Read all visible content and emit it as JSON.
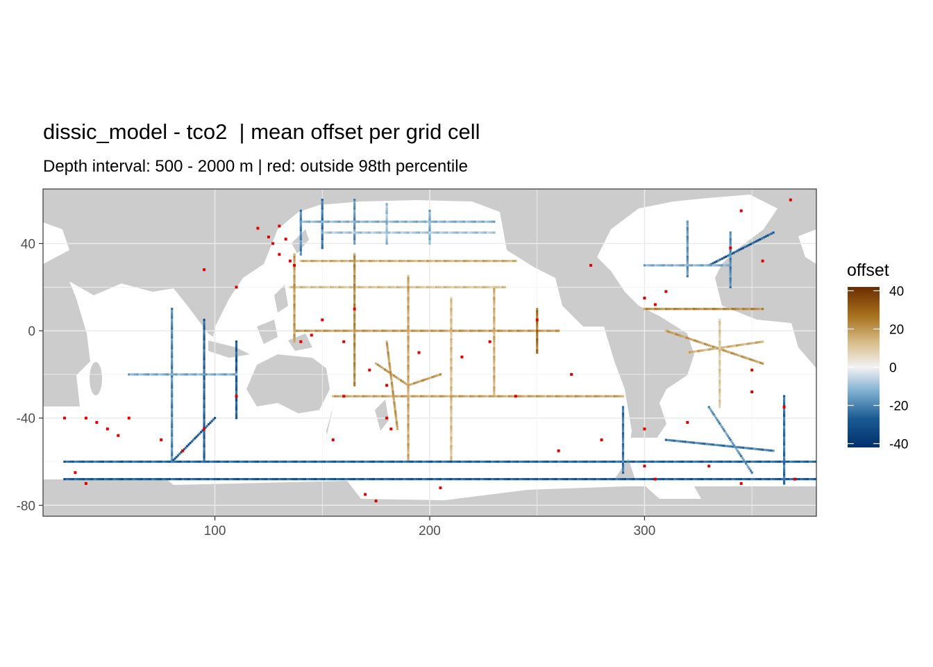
{
  "title": "dissic_model - tco2  | mean offset per grid cell",
  "subtitle": "Depth interval: 500 - 2000 m | red: outside 98th percentile",
  "colors": {
    "land": "#cccccc",
    "ocean": "#ffffff",
    "grid": "#ebebeb",
    "outlier": "#e00000",
    "scale_low": "#00306a",
    "scale_mid": "#f2f2f2",
    "scale_high": "#6b2c00"
  },
  "chart_data": {
    "type": "heatmap",
    "title": "dissic_model - tco2  | mean offset per grid cell",
    "subtitle": "Depth interval: 500 - 2000 m | red: outside 98th percentile",
    "xlabel": "",
    "ylabel": "",
    "xlim": [
      20,
      380
    ],
    "ylim": [
      -85,
      65
    ],
    "x_ticks": [
      100,
      200,
      300
    ],
    "y_ticks": [
      40,
      0,
      -40,
      -80
    ],
    "x_tick_labels": [
      "100",
      "200",
      "300"
    ],
    "y_tick_labels": [
      "40",
      "0",
      "-40",
      "-80"
    ],
    "grid": true,
    "legend": {
      "title": "offset",
      "position": "right",
      "range": [
        -42,
        42
      ],
      "breaks": [
        40,
        20,
        0,
        -20,
        -40
      ],
      "labels": [
        "40",
        "20",
        "0",
        "-20",
        "-40"
      ]
    },
    "tracks": [
      {
        "points": [
          [
            140,
            32
          ],
          [
            200,
            32
          ],
          [
            240,
            32
          ]
        ],
        "value": 18
      },
      {
        "points": [
          [
            135,
            20
          ],
          [
            200,
            20
          ],
          [
            235,
            20
          ]
        ],
        "value": 14
      },
      {
        "points": [
          [
            137,
            0
          ],
          [
            260,
            0
          ]
        ],
        "value": 22
      },
      {
        "points": [
          [
            137,
            35
          ],
          [
            137,
            -5
          ]
        ],
        "value": 22
      },
      {
        "points": [
          [
            165,
            35
          ],
          [
            165,
            -25
          ]
        ],
        "value": 25
      },
      {
        "points": [
          [
            190,
            25
          ],
          [
            190,
            -60
          ]
        ],
        "value": 20
      },
      {
        "points": [
          [
            210,
            15
          ],
          [
            210,
            -60
          ]
        ],
        "value": 15
      },
      {
        "points": [
          [
            230,
            20
          ],
          [
            230,
            -30
          ]
        ],
        "value": 18
      },
      {
        "points": [
          [
            250,
            10
          ],
          [
            250,
            -10
          ]
        ],
        "value": 30
      },
      {
        "points": [
          [
            155,
            -30
          ],
          [
            290,
            -30
          ]
        ],
        "value": 20
      },
      {
        "points": [
          [
            175,
            -15
          ],
          [
            190,
            -25
          ],
          [
            205,
            -20
          ]
        ],
        "value": 22
      },
      {
        "points": [
          [
            180,
            -5
          ],
          [
            185,
            -45
          ]
        ],
        "value": 22
      },
      {
        "points": [
          [
            300,
            10
          ],
          [
            355,
            10
          ]
        ],
        "value": 25
      },
      {
        "points": [
          [
            310,
            0
          ],
          [
            355,
            -15
          ]
        ],
        "value": 22
      },
      {
        "points": [
          [
            320,
            -10
          ],
          [
            355,
            -5
          ]
        ],
        "value": 18
      },
      {
        "points": [
          [
            335,
            5
          ],
          [
            335,
            -35
          ]
        ],
        "value": 12
      },
      {
        "points": [
          [
            140,
            55
          ],
          [
            140,
            35
          ]
        ],
        "value": -22
      },
      {
        "points": [
          [
            150,
            60
          ],
          [
            150,
            38
          ]
        ],
        "value": -25
      },
      {
        "points": [
          [
            165,
            60
          ],
          [
            165,
            40
          ]
        ],
        "value": -20
      },
      {
        "points": [
          [
            180,
            58
          ],
          [
            180,
            40
          ]
        ],
        "value": -12
      },
      {
        "points": [
          [
            200,
            55
          ],
          [
            200,
            40
          ]
        ],
        "value": -15
      },
      {
        "points": [
          [
            140,
            50
          ],
          [
            230,
            50
          ]
        ],
        "value": -14
      },
      {
        "points": [
          [
            150,
            45
          ],
          [
            230,
            45
          ]
        ],
        "value": -10
      },
      {
        "points": [
          [
            80,
            10
          ],
          [
            80,
            -60
          ]
        ],
        "value": -22
      },
      {
        "points": [
          [
            95,
            5
          ],
          [
            95,
            -60
          ]
        ],
        "value": -28
      },
      {
        "points": [
          [
            110,
            -5
          ],
          [
            110,
            -40
          ]
        ],
        "value": -30
      },
      {
        "points": [
          [
            60,
            -20
          ],
          [
            110,
            -20
          ]
        ],
        "value": -15
      },
      {
        "points": [
          [
            100,
            -40
          ],
          [
            80,
            -60
          ]
        ],
        "value": -30
      },
      {
        "points": [
          [
            30,
            -60
          ],
          [
            380,
            -60
          ]
        ],
        "value": -28
      },
      {
        "points": [
          [
            30,
            -68
          ],
          [
            380,
            -68
          ]
        ],
        "value": -30
      },
      {
        "points": [
          [
            290,
            -65
          ],
          [
            290,
            -35
          ]
        ],
        "value": -25
      },
      {
        "points": [
          [
            330,
            30
          ],
          [
            360,
            45
          ]
        ],
        "value": -30
      },
      {
        "points": [
          [
            320,
            25
          ],
          [
            320,
            50
          ]
        ],
        "value": -20
      },
      {
        "points": [
          [
            340,
            20
          ],
          [
            340,
            45
          ]
        ],
        "value": -22
      },
      {
        "points": [
          [
            300,
            30
          ],
          [
            340,
            30
          ]
        ],
        "value": -15
      },
      {
        "points": [
          [
            365,
            -30
          ],
          [
            365,
            -70
          ]
        ],
        "value": -26
      },
      {
        "points": [
          [
            330,
            -35
          ],
          [
            350,
            -65
          ]
        ],
        "value": -20
      },
      {
        "points": [
          [
            310,
            -50
          ],
          [
            360,
            -55
          ]
        ],
        "value": -24
      }
    ],
    "outliers": [
      [
        135,
        32
      ],
      [
        137,
        30
      ],
      [
        133,
        42
      ],
      [
        130,
        35
      ],
      [
        127,
        40
      ],
      [
        165,
        10
      ],
      [
        160,
        -5
      ],
      [
        172,
        -18
      ],
      [
        180,
        -40
      ],
      [
        182,
        -45
      ],
      [
        160,
        -30
      ],
      [
        145,
        -2
      ],
      [
        150,
        5
      ],
      [
        195,
        -10
      ],
      [
        215,
        -12
      ],
      [
        228,
        -5
      ],
      [
        250,
        5
      ],
      [
        266,
        -20
      ],
      [
        275,
        30
      ],
      [
        300,
        15
      ],
      [
        305,
        12
      ],
      [
        310,
        18
      ],
      [
        355,
        32
      ],
      [
        350,
        -28
      ],
      [
        365,
        -35
      ],
      [
        350,
        -18
      ],
      [
        30,
        -40
      ],
      [
        40,
        -40
      ],
      [
        45,
        -42
      ],
      [
        50,
        -45
      ],
      [
        55,
        -48
      ],
      [
        60,
        -40
      ],
      [
        75,
        -50
      ],
      [
        85,
        -55
      ],
      [
        95,
        -45
      ],
      [
        110,
        -30
      ],
      [
        35,
        -65
      ],
      [
        40,
        -70
      ],
      [
        155,
        -50
      ],
      [
        170,
        -75
      ],
      [
        175,
        -78
      ],
      [
        205,
        -72
      ],
      [
        300,
        -62
      ],
      [
        305,
        -68
      ],
      [
        320,
        -42
      ],
      [
        345,
        -70
      ],
      [
        370,
        -68
      ],
      [
        110,
        20
      ],
      [
        95,
        28
      ],
      [
        120,
        47
      ],
      [
        125,
        43
      ],
      [
        130,
        48
      ],
      [
        140,
        -5
      ],
      [
        180,
        -25
      ],
      [
        240,
        -30
      ],
      [
        260,
        -55
      ],
      [
        280,
        -50
      ],
      [
        300,
        -45
      ],
      [
        330,
        -62
      ],
      [
        345,
        55
      ],
      [
        368,
        60
      ],
      [
        340,
        38
      ]
    ]
  }
}
